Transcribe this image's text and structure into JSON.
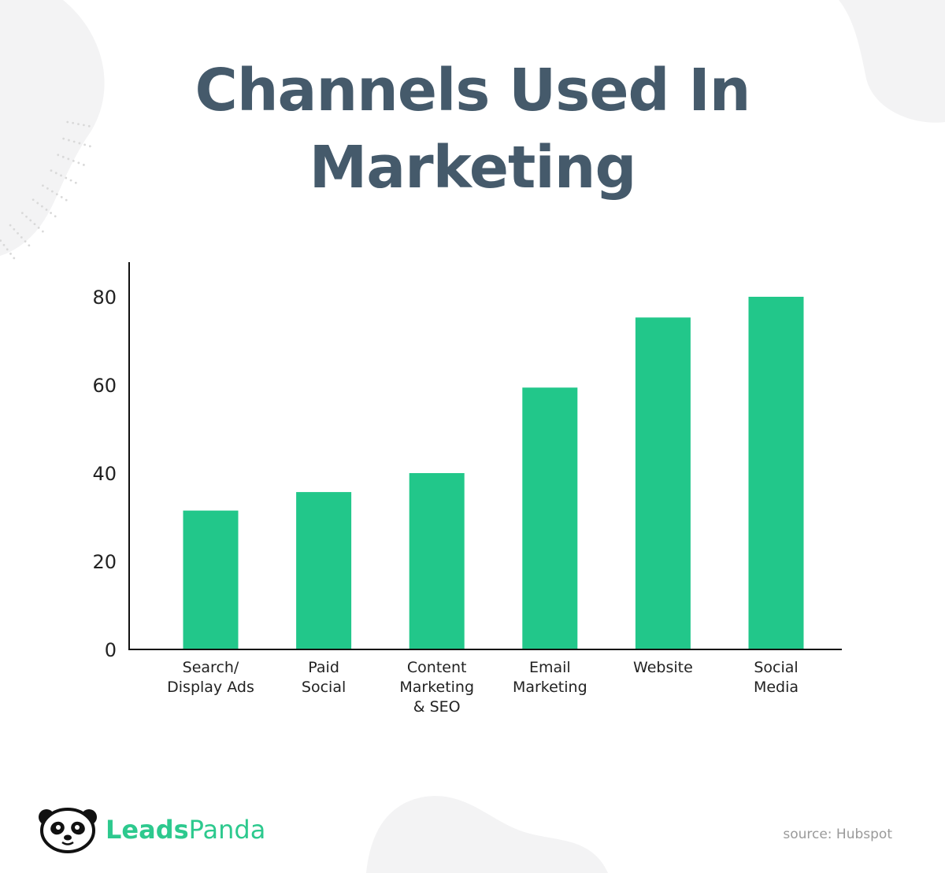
{
  "chart_data": {
    "type": "bar",
    "title_lines": [
      "Channels Used In",
      "Marketing"
    ],
    "categories": [
      [
        "Search/",
        "Display Ads"
      ],
      [
        "Paid",
        "Social"
      ],
      [
        "Content",
        "Marketing",
        "& SEO"
      ],
      [
        "Email",
        "Marketing"
      ],
      [
        "Website"
      ],
      [
        "Social",
        "Media"
      ]
    ],
    "values": [
      31.5,
      35.7,
      40,
      59.4,
      75.3,
      80
    ],
    "ylim": [
      0,
      87
    ],
    "yticks": [
      "0",
      "20",
      "40",
      "60",
      "80"
    ],
    "grid": false,
    "bar_color": "#22c78a"
  },
  "brand": {
    "name_part1": "Leads",
    "name_part2": "Panda",
    "color": "#2dc98e",
    "logo_icon": "panda-icon"
  },
  "source": "source: Hubspot"
}
